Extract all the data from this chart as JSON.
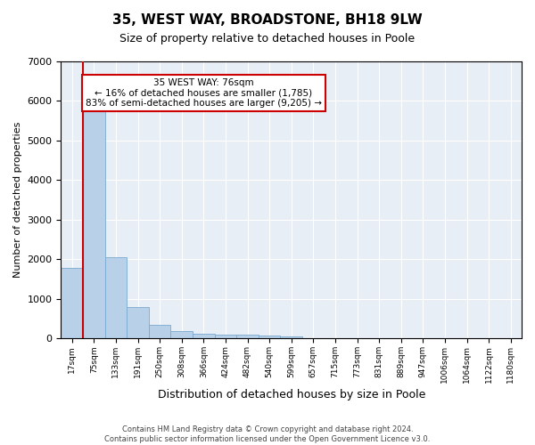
{
  "title": "35, WEST WAY, BROADSTONE, BH18 9LW",
  "subtitle": "Size of property relative to detached houses in Poole",
  "xlabel": "Distribution of detached houses by size in Poole",
  "ylabel": "Number of detached properties",
  "bar_labels": [
    "17sqm",
    "75sqm",
    "133sqm",
    "191sqm",
    "250sqm",
    "308sqm",
    "366sqm",
    "424sqm",
    "482sqm",
    "540sqm",
    "599sqm",
    "657sqm",
    "715sqm",
    "773sqm",
    "831sqm",
    "889sqm",
    "947sqm",
    "1006sqm",
    "1064sqm",
    "1122sqm",
    "1180sqm"
  ],
  "bar_values": [
    1780,
    5800,
    2060,
    800,
    340,
    185,
    120,
    100,
    95,
    80,
    50,
    0,
    0,
    0,
    0,
    0,
    0,
    0,
    0,
    0,
    0
  ],
  "bar_color": "#b8d0e8",
  "bar_edge_color": "#7aaacf",
  "property_label": "35 WEST WAY: 76sqm",
  "annotation_line1": "← 16% of detached houses are smaller (1,785)",
  "annotation_line2": "83% of semi-detached houses are larger (9,205) →",
  "vline_x_index": 1,
  "vline_color": "#cc0000",
  "ylim": [
    0,
    7000
  ],
  "yticks": [
    0,
    1000,
    2000,
    3000,
    4000,
    5000,
    6000,
    7000
  ],
  "annotation_box_edge": "#cc0000",
  "footer_line1": "Contains HM Land Registry data © Crown copyright and database right 2024.",
  "footer_line2": "Contains public sector information licensed under the Open Government Licence v3.0.",
  "plot_background": "#e8eef5"
}
